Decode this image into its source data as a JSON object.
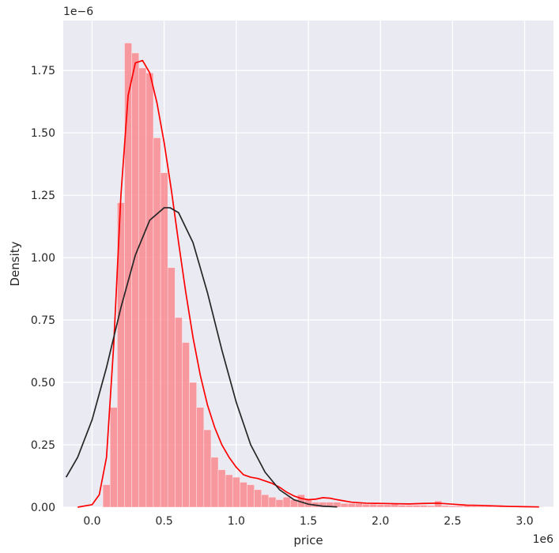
{
  "chart_data": {
    "type": "bar",
    "title": "",
    "xlabel": "price",
    "ylabel": "Density",
    "x_offset_label": "1e6",
    "y_offset_label": "1e−6",
    "xlim": [
      -0.2,
      3.2
    ],
    "ylim": [
      0,
      1.95
    ],
    "grid": true,
    "x_ticks": [
      {
        "value": 0.0,
        "label": "0.0"
      },
      {
        "value": 0.5,
        "label": "0.5"
      },
      {
        "value": 1.0,
        "label": "1.0"
      },
      {
        "value": 1.5,
        "label": "1.5"
      },
      {
        "value": 2.0,
        "label": "2.0"
      },
      {
        "value": 2.5,
        "label": "2.5"
      },
      {
        "value": 3.0,
        "label": "3.0"
      }
    ],
    "y_ticks": [
      {
        "value": 0.0,
        "label": "0.00"
      },
      {
        "value": 0.25,
        "label": "0.25"
      },
      {
        "value": 0.5,
        "label": "0.50"
      },
      {
        "value": 0.75,
        "label": "0.75"
      },
      {
        "value": 1.0,
        "label": "1.00"
      },
      {
        "value": 1.25,
        "label": "1.25"
      },
      {
        "value": 1.5,
        "label": "1.50"
      },
      {
        "value": 1.75,
        "label": "1.75"
      }
    ],
    "histogram": {
      "color": "#fa7f86",
      "bin_edges": [
        0.075,
        0.125,
        0.175,
        0.225,
        0.275,
        0.325,
        0.375,
        0.425,
        0.475,
        0.525,
        0.575,
        0.625,
        0.675,
        0.725,
        0.775,
        0.825,
        0.875,
        0.925,
        0.975,
        1.025,
        1.075,
        1.125,
        1.175,
        1.225,
        1.275,
        1.325,
        1.375,
        1.425,
        1.475,
        1.525,
        1.575,
        1.625,
        1.675,
        1.725,
        1.775,
        1.825,
        1.875,
        1.925,
        1.975,
        2.025,
        2.075,
        2.125,
        2.175,
        2.225,
        2.275,
        2.325,
        2.375,
        2.425,
        2.475,
        2.525,
        2.575,
        2.625,
        2.675,
        2.725,
        2.775,
        2.825,
        2.875,
        2.925,
        2.975,
        3.025,
        3.075,
        3.125
      ],
      "densities": [
        0.09,
        0.4,
        1.22,
        1.86,
        1.82,
        1.76,
        1.74,
        1.48,
        1.34,
        0.96,
        0.76,
        0.66,
        0.5,
        0.4,
        0.31,
        0.2,
        0.15,
        0.13,
        0.12,
        0.1,
        0.09,
        0.07,
        0.05,
        0.04,
        0.03,
        0.04,
        0.03,
        0.05,
        0.03,
        0.02,
        0.02,
        0.02,
        0.02,
        0.015,
        0.015,
        0.015,
        0.012,
        0.012,
        0.01,
        0.01,
        0.012,
        0.008,
        0.008,
        0.008,
        0.008,
        0.006,
        0.025,
        0.006,
        0.005,
        0.005,
        0.005,
        0.004,
        0.004,
        0.004,
        0.003,
        0.003,
        0.003,
        0.003,
        0.002,
        0.002,
        0.002
      ]
    },
    "series": [
      {
        "type": "line",
        "color": "#ff0000",
        "x": [
          -0.1,
          0.0,
          0.05,
          0.1,
          0.15,
          0.2,
          0.25,
          0.3,
          0.35,
          0.4,
          0.45,
          0.5,
          0.55,
          0.6,
          0.65,
          0.7,
          0.75,
          0.8,
          0.85,
          0.9,
          0.95,
          1.0,
          1.05,
          1.1,
          1.15,
          1.2,
          1.25,
          1.3,
          1.35,
          1.4,
          1.45,
          1.5,
          1.55,
          1.6,
          1.65,
          1.7,
          1.75,
          1.8,
          1.9,
          2.0,
          2.1,
          2.2,
          2.3,
          2.4,
          2.5,
          2.6,
          2.7,
          2.8,
          2.9,
          3.0,
          3.1
        ],
        "y": [
          0.0,
          0.01,
          0.05,
          0.2,
          0.65,
          1.25,
          1.65,
          1.78,
          1.79,
          1.74,
          1.62,
          1.46,
          1.27,
          1.06,
          0.86,
          0.68,
          0.53,
          0.41,
          0.32,
          0.25,
          0.2,
          0.16,
          0.13,
          0.12,
          0.115,
          0.105,
          0.095,
          0.08,
          0.06,
          0.045,
          0.035,
          0.03,
          0.032,
          0.038,
          0.036,
          0.03,
          0.025,
          0.02,
          0.016,
          0.015,
          0.014,
          0.013,
          0.015,
          0.016,
          0.012,
          0.008,
          0.007,
          0.005,
          0.003,
          0.002,
          0.001
        ]
      },
      {
        "type": "line",
        "color": "#262626",
        "x": [
          -0.18,
          -0.1,
          0.0,
          0.1,
          0.2,
          0.3,
          0.4,
          0.5,
          0.54,
          0.6,
          0.7,
          0.8,
          0.9,
          1.0,
          1.1,
          1.2,
          1.3,
          1.4,
          1.5,
          1.6,
          1.7
        ],
        "y": [
          0.12,
          0.2,
          0.35,
          0.56,
          0.8,
          1.01,
          1.15,
          1.2,
          1.2,
          1.18,
          1.06,
          0.86,
          0.63,
          0.42,
          0.25,
          0.14,
          0.07,
          0.03,
          0.012,
          0.004,
          0.001
        ]
      }
    ]
  }
}
